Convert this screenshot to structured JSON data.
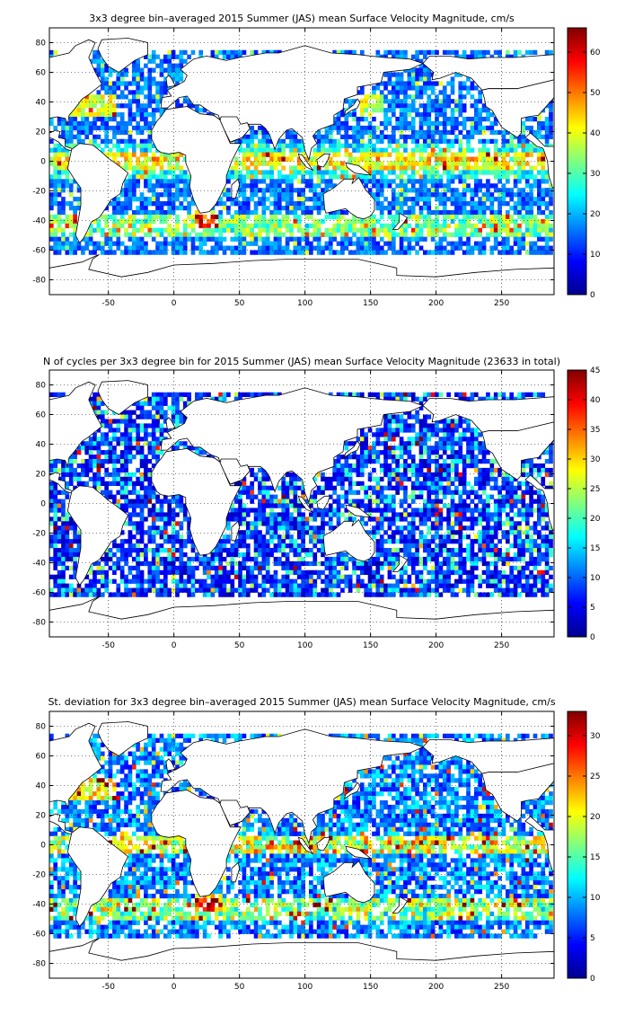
{
  "figure": {
    "colormap": "jet",
    "land_color": "#ffffff",
    "coastline_color": "#000000",
    "grid": "dotted"
  },
  "chart_data": [
    {
      "type": "heatmap",
      "title": "3x3 degree bin–averaged 2015 Summer (JAS) mean Surface Velocity Magnitude, cm/s",
      "xlim": [
        -95,
        290
      ],
      "ylim": [
        -90,
        90
      ],
      "xticks": [
        -50,
        0,
        50,
        100,
        150,
        200,
        250
      ],
      "yticks": [
        -80,
        -60,
        -40,
        -20,
        0,
        20,
        40,
        60,
        80
      ],
      "grid": true,
      "bin_size_deg": 3,
      "colorbar": {
        "min": 0,
        "max": 66,
        "ticks": [
          0,
          10,
          20,
          30,
          40,
          50,
          60
        ]
      },
      "field": "Surface Velocity Magnitude"
    },
    {
      "type": "heatmap",
      "title": "N of cycles per 3x3 degree bin for 2015 Summer (JAS) mean Surface Velocity Magnitude (23633 in total)",
      "xlim": [
        -95,
        290
      ],
      "ylim": [
        -90,
        90
      ],
      "xticks": [
        -50,
        0,
        50,
        100,
        150,
        200,
        250
      ],
      "yticks": [
        -80,
        -60,
        -40,
        -20,
        0,
        20,
        40,
        60,
        80
      ],
      "grid": true,
      "bin_size_deg": 3,
      "colorbar": {
        "min": 0,
        "max": 45,
        "ticks": [
          0,
          5,
          10,
          15,
          20,
          25,
          30,
          35,
          40,
          45
        ]
      },
      "field": "N of cycles",
      "total": 23633
    },
    {
      "type": "heatmap",
      "title": "St. deviation for 3x3 degree bin–averaged 2015 Summer (JAS) mean Surface Velocity Magnitude, cm/s",
      "xlim": [
        -95,
        290
      ],
      "ylim": [
        -90,
        90
      ],
      "xticks": [
        -50,
        0,
        50,
        100,
        150,
        200,
        250
      ],
      "yticks": [
        -80,
        -60,
        -40,
        -20,
        0,
        20,
        40,
        60,
        80
      ],
      "grid": true,
      "bin_size_deg": 3,
      "colorbar": {
        "min": 0,
        "max": 33,
        "ticks": [
          0,
          5,
          10,
          15,
          20,
          25,
          30
        ]
      },
      "field": "Standard deviation"
    }
  ]
}
